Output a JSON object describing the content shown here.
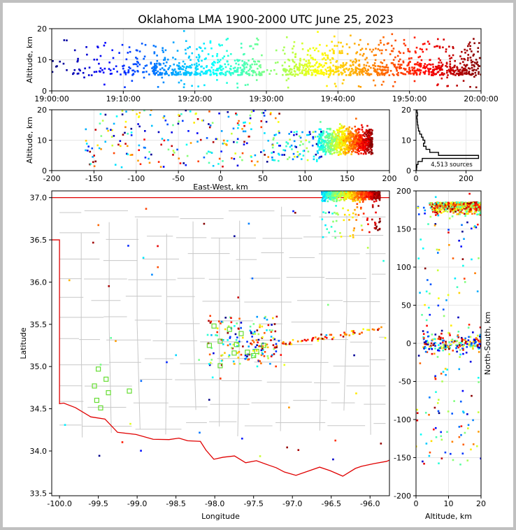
{
  "title": "Oklahoma LMA 1900-2000 UTC June 25, 2023",
  "colors": {
    "state_border": "#e00000",
    "county_lines": "#c8c8c8",
    "station_marker": "#66dd33",
    "histogram": "#000000",
    "grid": "#e6e6e6"
  },
  "chart_data": [
    {
      "id": "time_altitude",
      "type": "scatter",
      "xlabel": "",
      "ylabel": "Altitude, km",
      "x_ticks": [
        "19:00:00",
        "19:10:00",
        "19:20:00",
        "19:30:00",
        "19:40:00",
        "19:50:00",
        "20:00:00"
      ],
      "xlim": [
        "19:00:00",
        "20:00:00"
      ],
      "ylim": [
        0,
        20
      ],
      "y_ticks": [
        0,
        10,
        20
      ],
      "color_by": "time",
      "colormap": "jet"
    },
    {
      "id": "east_west_altitude",
      "type": "scatter",
      "xlabel": "East-West, km",
      "ylabel": "Altitude, km",
      "xlim": [
        -200,
        200
      ],
      "x_ticks": [
        -200,
        -150,
        -100,
        -50,
        0,
        50,
        100,
        150,
        200
      ],
      "ylim": [
        0,
        20
      ],
      "y_ticks": [
        0,
        10,
        20
      ]
    },
    {
      "id": "altitude_histogram",
      "type": "line",
      "annotation": "4,513 sources",
      "xlim": [
        0,
        260
      ],
      "x_ticks": [
        0,
        200
      ],
      "ylim": [
        0,
        20
      ],
      "y_ticks": [
        0,
        10,
        20
      ],
      "bins_km": [
        0,
        1,
        2,
        3,
        4,
        5,
        6,
        7,
        8,
        9,
        10,
        11,
        12,
        13,
        14,
        15,
        16,
        17,
        18,
        19
      ],
      "counts": [
        2,
        3,
        8,
        25,
        250,
        90,
        55,
        40,
        30,
        35,
        28,
        22,
        15,
        10,
        8,
        6,
        5,
        4,
        6,
        4
      ]
    },
    {
      "id": "plan_view",
      "type": "scatter",
      "xlabel": "Longitude",
      "ylabel": "Latitude",
      "xlim": [
        -100.1,
        -95.75
      ],
      "ylim": [
        33.47,
        37.08
      ],
      "x_ticks": [
        "-100.0",
        "-99.5",
        "-99.0",
        "-98.5",
        "-98.0",
        "-97.5",
        "-97.0",
        "-96.5",
        "-96.0"
      ],
      "y_ticks": [
        "33.5",
        "34.0",
        "34.5",
        "35.0",
        "35.5",
        "36.0",
        "36.5",
        "37.0"
      ],
      "stations": [
        [
          -99.5,
          34.97
        ],
        [
          -99.55,
          34.77
        ],
        [
          -99.4,
          34.85
        ],
        [
          -99.52,
          34.6
        ],
        [
          -99.47,
          34.51
        ],
        [
          -99.37,
          34.69
        ],
        [
          -99.1,
          34.71
        ],
        [
          -98.07,
          35.25
        ],
        [
          -98.01,
          35.48
        ],
        [
          -97.93,
          35.3
        ],
        [
          -97.93,
          35.01
        ],
        [
          -97.81,
          35.44
        ],
        [
          -97.72,
          35.26
        ],
        [
          -97.75,
          35.16
        ],
        [
          -97.66,
          35.39
        ],
        [
          -97.58,
          35.17
        ],
        [
          -97.5,
          35.13
        ],
        [
          -97.46,
          35.18
        ],
        [
          -97.37,
          35.25
        ]
      ]
    },
    {
      "id": "altitude_north_south",
      "type": "scatter",
      "xlabel": "Altitude, km",
      "ylabel": "North-South, km",
      "xlim": [
        0,
        20
      ],
      "x_ticks": [
        0,
        10,
        20
      ],
      "ylim": [
        -200,
        200
      ],
      "y_ticks": [
        -200,
        -150,
        -100,
        -50,
        0,
        50,
        100,
        150,
        200
      ]
    }
  ]
}
